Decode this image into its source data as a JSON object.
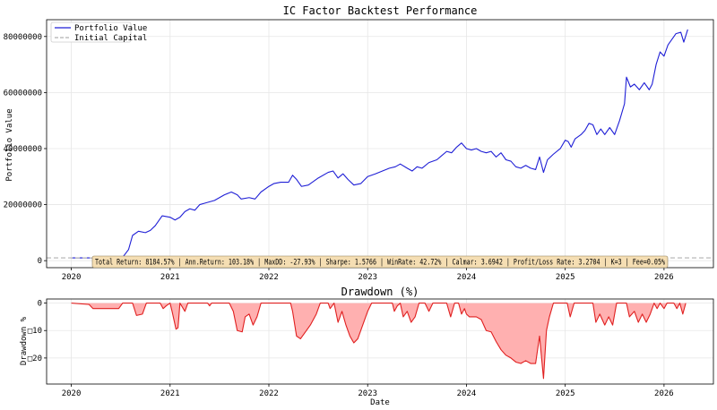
{
  "chart_data": [
    {
      "type": "line",
      "title": "IC Factor Backtest Performance",
      "xlabel": "",
      "ylabel": "Portfolio Value",
      "xlim": [
        2019.75,
        2026.5
      ],
      "ylim": [
        -2500000,
        86000000
      ],
      "xticks": [
        "2020",
        "2021",
        "2022",
        "2023",
        "2024",
        "2025",
        "2026"
      ],
      "yticks": [
        0,
        20000000,
        40000000,
        60000000,
        80000000
      ],
      "ytick_labels": [
        "0",
        "20000000",
        "40000000",
        "60000000",
        "80000000"
      ],
      "grid": true,
      "legend_position": "top-left",
      "series": [
        {
          "name": "Portfolio Value",
          "color": "#1f1fd6",
          "style": "solid",
          "points": [
            [
              2020.0,
              1000000
            ],
            [
              2020.2,
              1000000
            ],
            [
              2020.45,
              1000000
            ],
            [
              2020.52,
              1200000
            ],
            [
              2020.58,
              4000000
            ],
            [
              2020.62,
              9000000
            ],
            [
              2020.68,
              10500000
            ],
            [
              2020.75,
              10000000
            ],
            [
              2020.8,
              10800000
            ],
            [
              2020.85,
              12500000
            ],
            [
              2020.92,
              16000000
            ],
            [
              2021.0,
              15500000
            ],
            [
              2021.05,
              14500000
            ],
            [
              2021.1,
              15500000
            ],
            [
              2021.15,
              17500000
            ],
            [
              2021.2,
              18500000
            ],
            [
              2021.25,
              18000000
            ],
            [
              2021.3,
              20000000
            ],
            [
              2021.35,
              20500000
            ],
            [
              2021.45,
              21500000
            ],
            [
              2021.55,
              23500000
            ],
            [
              2021.62,
              24500000
            ],
            [
              2021.68,
              23500000
            ],
            [
              2021.72,
              22000000
            ],
            [
              2021.8,
              22500000
            ],
            [
              2021.86,
              22000000
            ],
            [
              2021.92,
              24500000
            ],
            [
              2022.0,
              26500000
            ],
            [
              2022.05,
              27500000
            ],
            [
              2022.12,
              28000000
            ],
            [
              2022.2,
              28000000
            ],
            [
              2022.24,
              30500000
            ],
            [
              2022.28,
              29000000
            ],
            [
              2022.33,
              26500000
            ],
            [
              2022.4,
              27000000
            ],
            [
              2022.5,
              29500000
            ],
            [
              2022.6,
              31500000
            ],
            [
              2022.65,
              32000000
            ],
            [
              2022.7,
              29500000
            ],
            [
              2022.75,
              31000000
            ],
            [
              2022.8,
              29000000
            ],
            [
              2022.86,
              27000000
            ],
            [
              2022.93,
              27500000
            ],
            [
              2023.0,
              30000000
            ],
            [
              2023.08,
              31000000
            ],
            [
              2023.15,
              32000000
            ],
            [
              2023.22,
              33000000
            ],
            [
              2023.28,
              33500000
            ],
            [
              2023.33,
              34500000
            ],
            [
              2023.4,
              33000000
            ],
            [
              2023.45,
              32000000
            ],
            [
              2023.5,
              33500000
            ],
            [
              2023.55,
              33000000
            ],
            [
              2023.62,
              35000000
            ],
            [
              2023.7,
              36000000
            ],
            [
              2023.75,
              37500000
            ],
            [
              2023.8,
              39000000
            ],
            [
              2023.85,
              38500000
            ],
            [
              2023.9,
              40500000
            ],
            [
              2023.95,
              42000000
            ],
            [
              2024.0,
              40000000
            ],
            [
              2024.05,
              39500000
            ],
            [
              2024.1,
              40000000
            ],
            [
              2024.15,
              39000000
            ],
            [
              2024.2,
              38500000
            ],
            [
              2024.25,
              39000000
            ],
            [
              2024.3,
              37000000
            ],
            [
              2024.35,
              38500000
            ],
            [
              2024.4,
              36000000
            ],
            [
              2024.45,
              35500000
            ],
            [
              2024.5,
              33500000
            ],
            [
              2024.55,
              33000000
            ],
            [
              2024.6,
              34000000
            ],
            [
              2024.65,
              33000000
            ],
            [
              2024.7,
              32500000
            ],
            [
              2024.74,
              37000000
            ],
            [
              2024.78,
              31500000
            ],
            [
              2024.82,
              36000000
            ],
            [
              2024.88,
              38000000
            ],
            [
              2024.95,
              40000000
            ],
            [
              2025.0,
              43000000
            ],
            [
              2025.03,
              42500000
            ],
            [
              2025.06,
              40500000
            ],
            [
              2025.1,
              43500000
            ],
            [
              2025.16,
              45000000
            ],
            [
              2025.2,
              46500000
            ],
            [
              2025.24,
              49000000
            ],
            [
              2025.28,
              48500000
            ],
            [
              2025.32,
              45000000
            ],
            [
              2025.36,
              47000000
            ],
            [
              2025.4,
              45000000
            ],
            [
              2025.45,
              47500000
            ],
            [
              2025.5,
              45000000
            ],
            [
              2025.55,
              50000000
            ],
            [
              2025.6,
              56000000
            ],
            [
              2025.62,
              65500000
            ],
            [
              2025.66,
              62000000
            ],
            [
              2025.7,
              63000000
            ],
            [
              2025.75,
              61000000
            ],
            [
              2025.8,
              63500000
            ],
            [
              2025.85,
              61000000
            ],
            [
              2025.88,
              63000000
            ],
            [
              2025.92,
              70000000
            ],
            [
              2025.96,
              74500000
            ],
            [
              2026.0,
              73000000
            ],
            [
              2026.04,
              77000000
            ],
            [
              2026.08,
              79000000
            ],
            [
              2026.12,
              81000000
            ],
            [
              2026.17,
              81500000
            ],
            [
              2026.2,
              78000000
            ],
            [
              2026.24,
              82500000
            ]
          ]
        },
        {
          "name": "Initial Capital",
          "color": "#b0b0b0",
          "style": "dashed",
          "points": [
            [
              2019.75,
              1000000
            ],
            [
              2026.5,
              1000000
            ]
          ]
        }
      ],
      "annotation": "Total Return: 8184.57% | Ann.Return: 103.18% | MaxDD: -27.93% | Sharpe: 1.5766 | WinRate: 42.72% | Calmar: 3.6942 | Profit/Loss Rate: 3.2704 | K=3 | Fee=0.05%"
    },
    {
      "type": "area",
      "title": "Drawdown (%)",
      "xlabel": "Date",
      "ylabel": "Drawdown %",
      "xlim": [
        2019.75,
        2026.5
      ],
      "ylim": [
        -29.5,
        1.5
      ],
      "xticks": [
        "2020",
        "2021",
        "2022",
        "2023",
        "2024",
        "2025",
        "2026"
      ],
      "yticks": [
        0,
        -10,
        -20
      ],
      "ytick_labels": [
        "0",
        "□10",
        "□20"
      ],
      "grid": true,
      "series": [
        {
          "color": "#e02020",
          "fill": "#ffb0b0",
          "points": [
            [
              2020.0,
              0
            ],
            [
              2020.18,
              -0.5
            ],
            [
              2020.22,
              -2
            ],
            [
              2020.48,
              -2
            ],
            [
              2020.52,
              0
            ],
            [
              2020.62,
              0
            ],
            [
              2020.66,
              -4.5
            ],
            [
              2020.72,
              -4
            ],
            [
              2020.76,
              0
            ],
            [
              2020.9,
              0
            ],
            [
              2020.93,
              -2
            ],
            [
              2020.96,
              -1
            ],
            [
              2021.0,
              0
            ],
            [
              2021.02,
              -3
            ],
            [
              2021.06,
              -9.5
            ],
            [
              2021.08,
              -9
            ],
            [
              2021.1,
              0
            ],
            [
              2021.15,
              -3
            ],
            [
              2021.18,
              0
            ],
            [
              2021.38,
              0
            ],
            [
              2021.4,
              -1
            ],
            [
              2021.42,
              0
            ],
            [
              2021.6,
              0
            ],
            [
              2021.64,
              -3
            ],
            [
              2021.68,
              -10
            ],
            [
              2021.73,
              -10.5
            ],
            [
              2021.76,
              -5
            ],
            [
              2021.8,
              -4
            ],
            [
              2021.84,
              -8
            ],
            [
              2021.88,
              -5
            ],
            [
              2021.92,
              0
            ],
            [
              2022.22,
              0
            ],
            [
              2022.24,
              -3
            ],
            [
              2022.28,
              -12
            ],
            [
              2022.32,
              -13
            ],
            [
              2022.36,
              -11
            ],
            [
              2022.42,
              -8
            ],
            [
              2022.48,
              -4
            ],
            [
              2022.52,
              0
            ],
            [
              2022.6,
              0
            ],
            [
              2022.62,
              -2
            ],
            [
              2022.66,
              0
            ],
            [
              2022.7,
              -7
            ],
            [
              2022.74,
              -3
            ],
            [
              2022.78,
              -8
            ],
            [
              2022.82,
              -12
            ],
            [
              2022.86,
              -14.5
            ],
            [
              2022.9,
              -13
            ],
            [
              2022.96,
              -7
            ],
            [
              2023.0,
              -3
            ],
            [
              2023.04,
              0
            ],
            [
              2023.25,
              0
            ],
            [
              2023.27,
              -3
            ],
            [
              2023.3,
              -1
            ],
            [
              2023.33,
              0
            ],
            [
              2023.36,
              -5
            ],
            [
              2023.4,
              -3
            ],
            [
              2023.44,
              -7
            ],
            [
              2023.48,
              -5
            ],
            [
              2023.52,
              0
            ],
            [
              2023.58,
              0
            ],
            [
              2023.62,
              -3
            ],
            [
              2023.66,
              0
            ],
            [
              2023.8,
              0
            ],
            [
              2023.84,
              -5
            ],
            [
              2023.88,
              0
            ],
            [
              2023.92,
              0
            ],
            [
              2023.95,
              -4
            ],
            [
              2023.98,
              -2
            ],
            [
              2024.0,
              -4
            ],
            [
              2024.03,
              -5
            ],
            [
              2024.1,
              -5
            ],
            [
              2024.15,
              -6
            ],
            [
              2024.2,
              -10
            ],
            [
              2024.25,
              -10.5
            ],
            [
              2024.3,
              -14
            ],
            [
              2024.35,
              -17
            ],
            [
              2024.4,
              -19
            ],
            [
              2024.45,
              -20
            ],
            [
              2024.5,
              -21.5
            ],
            [
              2024.55,
              -22
            ],
            [
              2024.6,
              -21
            ],
            [
              2024.65,
              -22
            ],
            [
              2024.7,
              -22
            ],
            [
              2024.74,
              -12
            ],
            [
              2024.78,
              -27.5
            ],
            [
              2024.81,
              -10
            ],
            [
              2024.84,
              -5
            ],
            [
              2024.88,
              0
            ],
            [
              2025.02,
              0
            ],
            [
              2025.05,
              -5
            ],
            [
              2025.09,
              0
            ],
            [
              2025.28,
              0
            ],
            [
              2025.31,
              -7
            ],
            [
              2025.35,
              -4
            ],
            [
              2025.4,
              -8
            ],
            [
              2025.44,
              -5
            ],
            [
              2025.48,
              -8
            ],
            [
              2025.52,
              0
            ],
            [
              2025.62,
              0
            ],
            [
              2025.65,
              -5
            ],
            [
              2025.7,
              -3
            ],
            [
              2025.74,
              -7
            ],
            [
              2025.78,
              -4
            ],
            [
              2025.82,
              -7
            ],
            [
              2025.86,
              -4
            ],
            [
              2025.9,
              0
            ],
            [
              2025.93,
              -2
            ],
            [
              2025.96,
              0
            ],
            [
              2026.0,
              -2
            ],
            [
              2026.03,
              0
            ],
            [
              2026.1,
              0
            ],
            [
              2026.13,
              -2
            ],
            [
              2026.16,
              0
            ],
            [
              2026.19,
              -4
            ],
            [
              2026.22,
              0
            ]
          ]
        }
      ]
    }
  ]
}
